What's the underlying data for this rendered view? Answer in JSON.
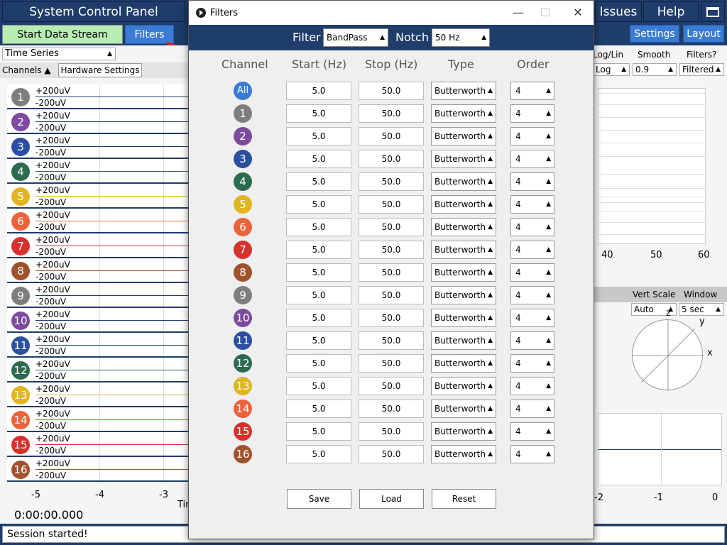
{
  "topbar": {
    "title": "System Control Panel",
    "issues": "Issues",
    "help": "Help"
  },
  "toolbar": {
    "start": "Start Data Stream",
    "filters": "Filters",
    "settings": "Settings",
    "layout": "Layout"
  },
  "timeseries": {
    "dropdown": "Time Series",
    "channels_label": "Channels",
    "hardware_btn": "Hardware Settings",
    "plus": "+200uV",
    "minus": "-200uV",
    "channels": [
      {
        "n": "1",
        "color": "#7e7e7e",
        "line": "#1f3d6b"
      },
      {
        "n": "2",
        "color": "#7d4b9e",
        "line": "#1f3d6b"
      },
      {
        "n": "3",
        "color": "#2d4fa0",
        "line": "#1f3d6b"
      },
      {
        "n": "4",
        "color": "#2d6b4f",
        "line": "#2d6b4f"
      },
      {
        "n": "5",
        "color": "#e0b51f",
        "line": "#e0b51f"
      },
      {
        "n": "6",
        "color": "#ec6239",
        "line": "#ec6239"
      },
      {
        "n": "7",
        "color": "#d7312e",
        "line": "#d7312e"
      },
      {
        "n": "8",
        "color": "#a0522d",
        "line": "#a0522d"
      },
      {
        "n": "9",
        "color": "#7e7e7e",
        "line": "#1f3d6b"
      },
      {
        "n": "10",
        "color": "#7d4b9e",
        "line": "#1f3d6b"
      },
      {
        "n": "11",
        "color": "#2d4fa0",
        "line": "#1f3d6b"
      },
      {
        "n": "12",
        "color": "#2d6b4f",
        "line": "#2d6b4f"
      },
      {
        "n": "13",
        "color": "#e0b51f",
        "line": "#e0b51f"
      },
      {
        "n": "14",
        "color": "#ec6239",
        "line": "#ec6239"
      },
      {
        "n": "15",
        "color": "#d7312e",
        "line": "#d7312e"
      },
      {
        "n": "16",
        "color": "#a0522d",
        "line": "#a0522d"
      }
    ],
    "xticks": [
      "-5",
      "-4",
      "-3"
    ],
    "time_label": "Tim",
    "timer": "0:00:00.000"
  },
  "fft": {
    "headers": [
      "Log/Lin",
      "Smooth",
      "Filters?"
    ],
    "values": [
      "Log",
      "0.9",
      "Filtered"
    ],
    "xticks": [
      "40",
      "50",
      "60"
    ]
  },
  "accel": {
    "headers": [
      "Vert Scale",
      "Window"
    ],
    "values": [
      "Auto",
      "5 sec"
    ],
    "axes": [
      "z",
      "y",
      "x"
    ],
    "xticks": [
      "-2",
      "-1",
      "0"
    ]
  },
  "status": "Session started!",
  "filterwin": {
    "title": "Filters",
    "filter_label": "Filter",
    "filter_value": "BandPass",
    "notch_label": "Notch",
    "notch_value": "50 Hz",
    "columns": [
      "Channel",
      "Start (Hz)",
      "Stop (Hz)",
      "Type",
      "Order"
    ],
    "rows": [
      {
        "ch": "All",
        "color": "#3a7bd5",
        "start": "5.0",
        "stop": "50.0",
        "type": "Butterworth",
        "order": "4"
      },
      {
        "ch": "1",
        "color": "#7e7e7e",
        "start": "5.0",
        "stop": "50.0",
        "type": "Butterworth",
        "order": "4"
      },
      {
        "ch": "2",
        "color": "#7d4b9e",
        "start": "5.0",
        "stop": "50.0",
        "type": "Butterworth",
        "order": "4"
      },
      {
        "ch": "3",
        "color": "#2d4fa0",
        "start": "5.0",
        "stop": "50.0",
        "type": "Butterworth",
        "order": "4"
      },
      {
        "ch": "4",
        "color": "#2d6b4f",
        "start": "5.0",
        "stop": "50.0",
        "type": "Butterworth",
        "order": "4"
      },
      {
        "ch": "5",
        "color": "#e0b51f",
        "start": "5.0",
        "stop": "50.0",
        "type": "Butterworth",
        "order": "4"
      },
      {
        "ch": "6",
        "color": "#ec6239",
        "start": "5.0",
        "stop": "50.0",
        "type": "Butterworth",
        "order": "4"
      },
      {
        "ch": "7",
        "color": "#d7312e",
        "start": "5.0",
        "stop": "50.0",
        "type": "Butterworth",
        "order": "4"
      },
      {
        "ch": "8",
        "color": "#a0522d",
        "start": "5.0",
        "stop": "50.0",
        "type": "Butterworth",
        "order": "4"
      },
      {
        "ch": "9",
        "color": "#7e7e7e",
        "start": "5.0",
        "stop": "50.0",
        "type": "Butterworth",
        "order": "4"
      },
      {
        "ch": "10",
        "color": "#7d4b9e",
        "start": "5.0",
        "stop": "50.0",
        "type": "Butterworth",
        "order": "4"
      },
      {
        "ch": "11",
        "color": "#2d4fa0",
        "start": "5.0",
        "stop": "50.0",
        "type": "Butterworth",
        "order": "4"
      },
      {
        "ch": "12",
        "color": "#2d6b4f",
        "start": "5.0",
        "stop": "50.0",
        "type": "Butterworth",
        "order": "4"
      },
      {
        "ch": "13",
        "color": "#e0b51f",
        "start": "5.0",
        "stop": "50.0",
        "type": "Butterworth",
        "order": "4"
      },
      {
        "ch": "14",
        "color": "#ec6239",
        "start": "5.0",
        "stop": "50.0",
        "type": "Butterworth",
        "order": "4"
      },
      {
        "ch": "15",
        "color": "#d7312e",
        "start": "5.0",
        "stop": "50.0",
        "type": "Butterworth",
        "order": "4"
      },
      {
        "ch": "16",
        "color": "#a0522d",
        "start": "5.0",
        "stop": "50.0",
        "type": "Butterworth",
        "order": "4"
      }
    ],
    "save": "Save",
    "load": "Load",
    "reset": "Reset"
  }
}
